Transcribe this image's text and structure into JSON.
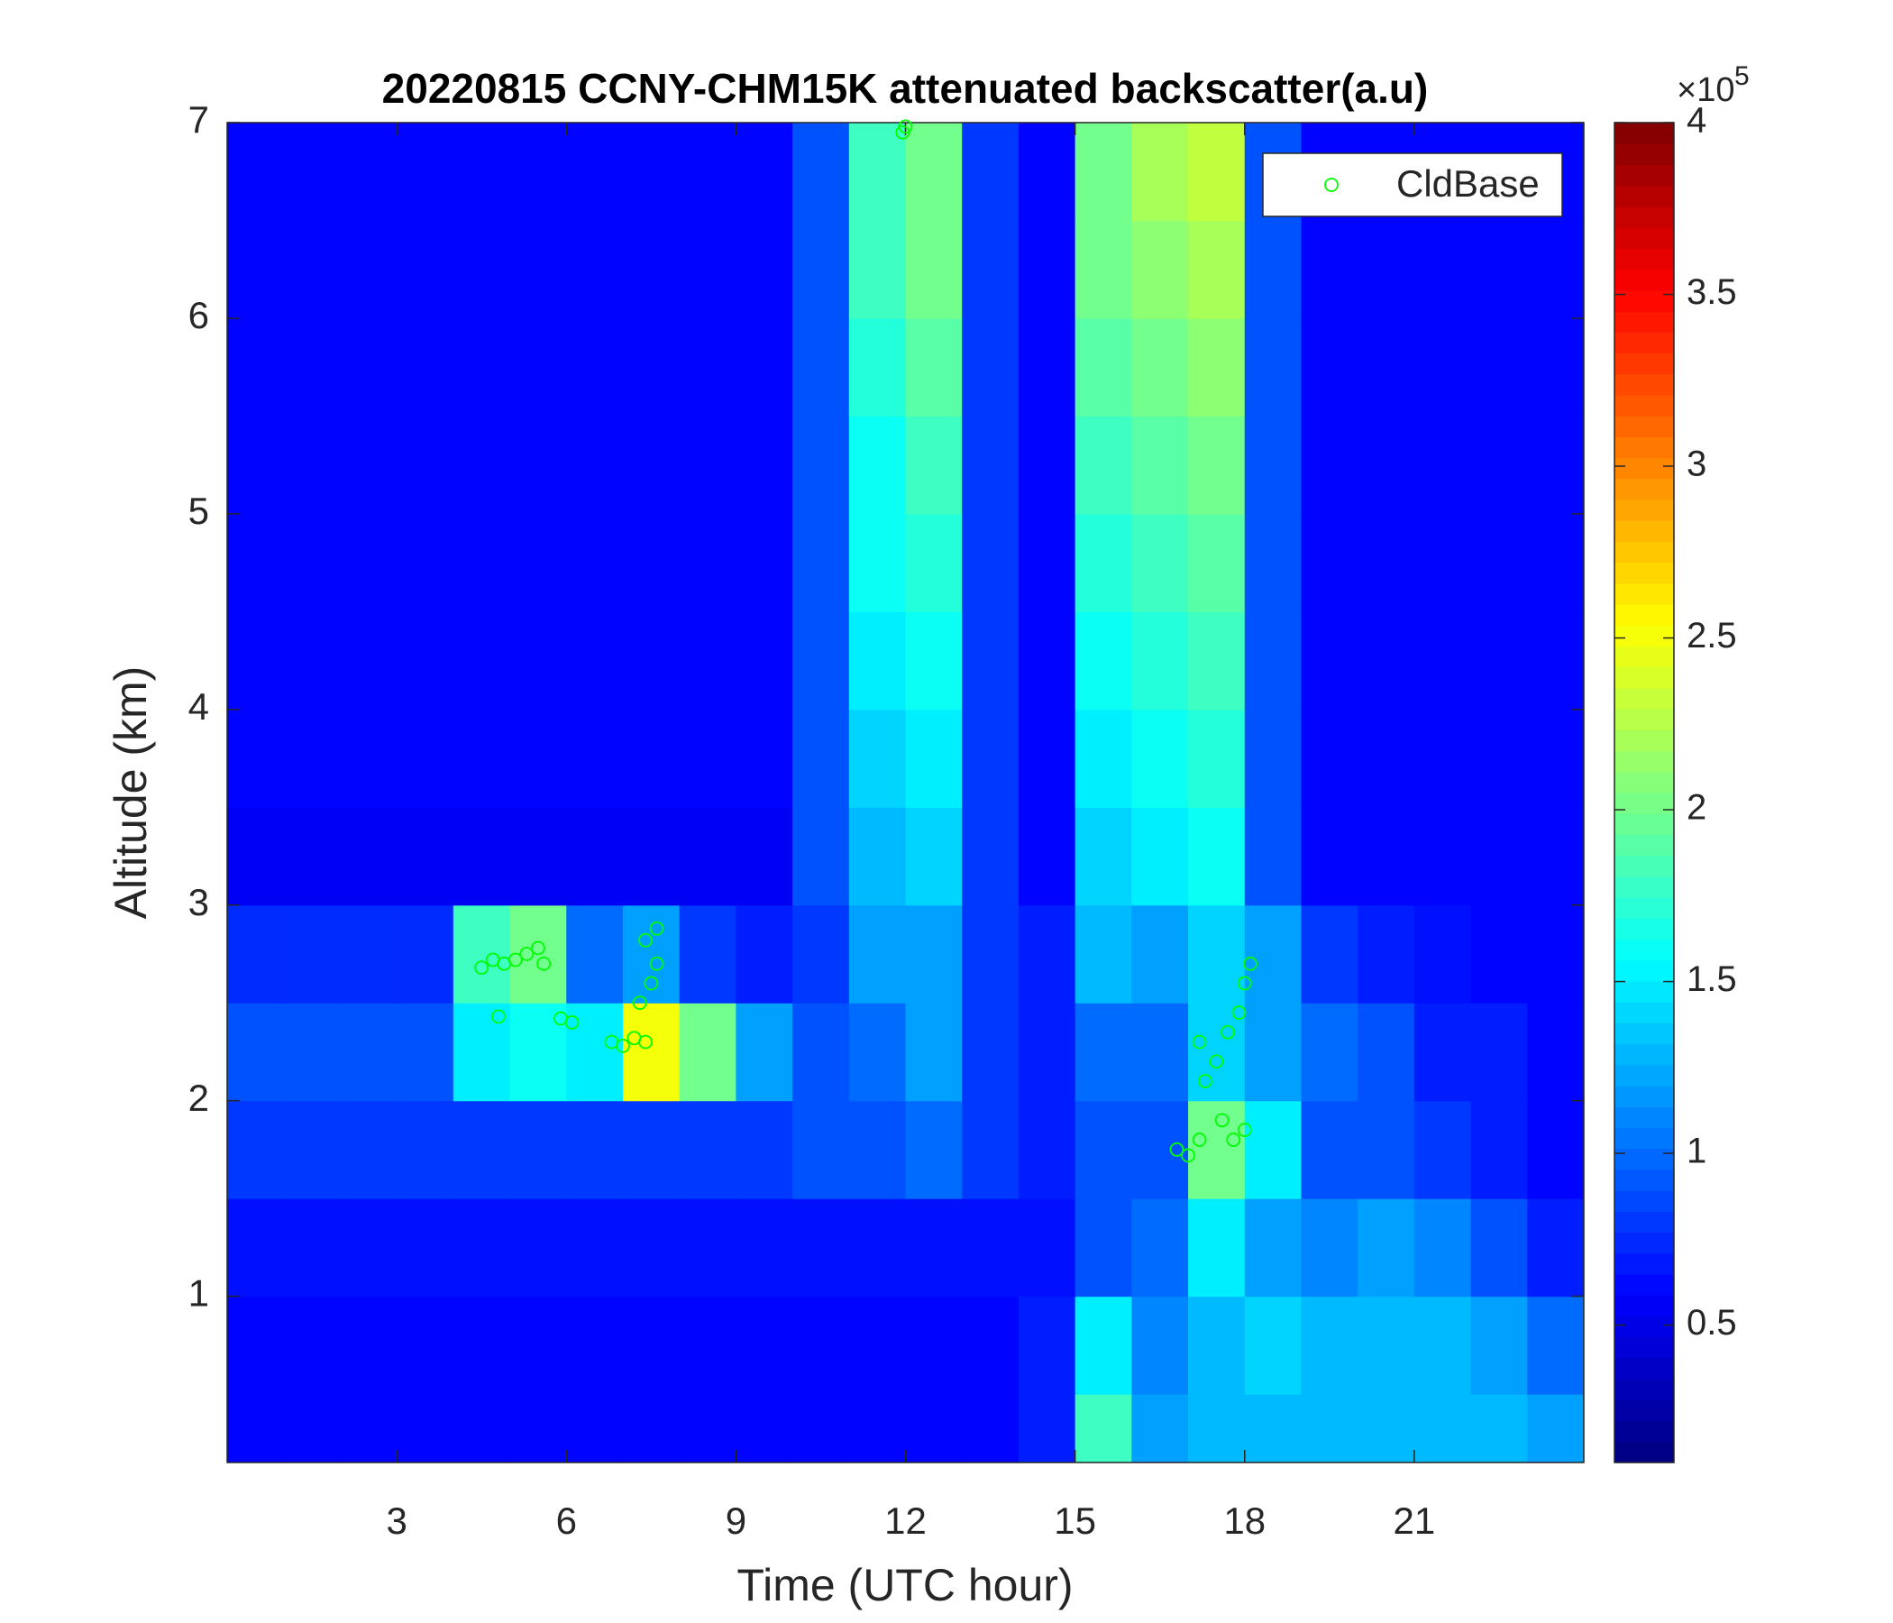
{
  "chart_data": {
    "type": "heatmap",
    "title": "20220815 CCNY-CHM15K attenuated backscatter(a.u)",
    "xlabel": "Time (UTC hour)",
    "ylabel": "Altitude (km)",
    "xlim": [
      0,
      24
    ],
    "ylim": [
      0.15,
      7
    ],
    "xticks": [
      3,
      6,
      9,
      12,
      15,
      18,
      21
    ],
    "yticks": [
      1,
      2,
      3,
      4,
      5,
      6,
      7
    ],
    "colormap": "jet",
    "clim": [
      0.1,
      4
    ],
    "cticks": [
      0.5,
      1,
      1.5,
      2,
      2.5,
      3,
      3.5,
      4
    ],
    "colorbar_multiplier": "×10",
    "colorbar_exponent": 5,
    "x": [
      0.5,
      1.5,
      2.5,
      3.5,
      4.5,
      5.5,
      6.5,
      7.5,
      8.5,
      9.5,
      10.5,
      11.5,
      12.5,
      13.5,
      14.5,
      15.5,
      16.5,
      17.5,
      18.5,
      19.5,
      20.5,
      21.5,
      22.5,
      23.5
    ],
    "y": [
      0.25,
      0.75,
      1.25,
      1.75,
      2.25,
      2.75,
      3.25,
      3.75,
      4.25,
      4.75,
      5.25,
      5.75,
      6.25,
      6.75
    ],
    "z": [
      [
        0.6,
        0.6,
        0.6,
        0.6,
        0.6,
        0.6,
        0.6,
        0.6,
        0.6,
        0.6,
        0.6,
        0.6,
        0.6,
        0.6,
        0.7,
        1.8,
        1.2,
        1.3,
        1.3,
        1.3,
        1.3,
        1.3,
        1.3,
        1.2
      ],
      [
        0.6,
        0.6,
        0.6,
        0.6,
        0.6,
        0.6,
        0.6,
        0.6,
        0.6,
        0.6,
        0.6,
        0.6,
        0.6,
        0.6,
        0.7,
        1.5,
        1.1,
        1.3,
        1.4,
        1.3,
        1.3,
        1.3,
        1.2,
        1.0
      ],
      [
        0.65,
        0.65,
        0.65,
        0.65,
        0.65,
        0.65,
        0.65,
        0.65,
        0.65,
        0.65,
        0.65,
        0.65,
        0.65,
        0.65,
        0.65,
        0.9,
        1.0,
        1.5,
        1.2,
        1.1,
        1.2,
        1.1,
        0.9,
        0.7
      ],
      [
        0.8,
        0.8,
        0.8,
        0.8,
        0.8,
        0.8,
        0.8,
        0.8,
        0.8,
        0.8,
        0.9,
        0.9,
        1.0,
        0.8,
        0.7,
        0.9,
        0.9,
        2.0,
        1.5,
        0.9,
        0.9,
        0.8,
        0.7,
        0.6
      ],
      [
        0.9,
        0.9,
        0.9,
        0.9,
        1.5,
        1.6,
        1.5,
        2.5,
        2.0,
        1.2,
        0.9,
        1.0,
        1.2,
        0.8,
        0.7,
        1.0,
        1.0,
        1.4,
        1.2,
        1.0,
        0.9,
        0.7,
        0.7,
        0.6
      ],
      [
        0.75,
        0.75,
        0.75,
        0.75,
        1.8,
        2.0,
        1.0,
        1.2,
        0.8,
        0.7,
        0.8,
        1.2,
        1.2,
        0.8,
        0.7,
        1.3,
        1.2,
        1.4,
        1.2,
        0.8,
        0.7,
        0.65,
        0.6,
        0.6
      ],
      [
        0.55,
        0.55,
        0.55,
        0.55,
        0.55,
        0.55,
        0.55,
        0.55,
        0.55,
        0.55,
        0.9,
        1.3,
        1.4,
        0.8,
        0.6,
        1.4,
        1.5,
        1.6,
        0.9,
        0.6,
        0.6,
        0.6,
        0.6,
        0.6
      ],
      [
        0.6,
        0.6,
        0.6,
        0.6,
        0.6,
        0.6,
        0.6,
        0.6,
        0.6,
        0.6,
        0.9,
        1.4,
        1.5,
        0.8,
        0.6,
        1.5,
        1.6,
        1.7,
        0.9,
        0.6,
        0.6,
        0.6,
        0.6,
        0.6
      ],
      [
        0.6,
        0.6,
        0.6,
        0.6,
        0.6,
        0.6,
        0.6,
        0.6,
        0.6,
        0.6,
        0.9,
        1.5,
        1.6,
        0.8,
        0.6,
        1.6,
        1.7,
        1.8,
        0.9,
        0.6,
        0.6,
        0.6,
        0.6,
        0.6
      ],
      [
        0.6,
        0.6,
        0.6,
        0.6,
        0.6,
        0.6,
        0.6,
        0.6,
        0.6,
        0.6,
        0.9,
        1.6,
        1.7,
        0.8,
        0.6,
        1.7,
        1.8,
        1.9,
        0.9,
        0.6,
        0.6,
        0.6,
        0.6,
        0.6
      ],
      [
        0.6,
        0.6,
        0.6,
        0.6,
        0.6,
        0.6,
        0.6,
        0.6,
        0.6,
        0.6,
        0.9,
        1.6,
        1.8,
        0.8,
        0.6,
        1.8,
        1.9,
        2.0,
        0.9,
        0.6,
        0.6,
        0.6,
        0.6,
        0.6
      ],
      [
        0.6,
        0.6,
        0.6,
        0.6,
        0.6,
        0.6,
        0.6,
        0.6,
        0.6,
        0.6,
        0.9,
        1.7,
        1.9,
        0.8,
        0.6,
        1.9,
        2.0,
        2.1,
        0.9,
        0.6,
        0.6,
        0.6,
        0.6,
        0.6
      ],
      [
        0.6,
        0.6,
        0.6,
        0.6,
        0.6,
        0.6,
        0.6,
        0.6,
        0.6,
        0.6,
        0.9,
        1.8,
        2.0,
        0.8,
        0.6,
        2.0,
        2.1,
        2.2,
        0.9,
        0.6,
        0.6,
        0.6,
        0.6,
        0.6
      ],
      [
        0.6,
        0.6,
        0.6,
        0.6,
        0.6,
        0.6,
        0.6,
        0.6,
        0.6,
        0.6,
        0.9,
        1.8,
        2.0,
        0.8,
        0.6,
        2.0,
        2.2,
        2.3,
        0.9,
        0.6,
        0.6,
        0.6,
        0.6,
        0.6
      ]
    ],
    "series": [
      {
        "name": "CldBase",
        "type": "scatter",
        "color": "#00ff00",
        "x": [
          4.5,
          4.7,
          4.9,
          5.1,
          5.3,
          5.5,
          5.6,
          4.8,
          5.9,
          6.1,
          6.8,
          7.0,
          7.2,
          7.3,
          7.4,
          7.5,
          7.6,
          7.6,
          7.4,
          12.0,
          11.95,
          16.8,
          17.0,
          17.2,
          17.3,
          17.5,
          17.6,
          17.8,
          17.9,
          18.0,
          18.1,
          17.2,
          18.0,
          17.7
        ],
        "y": [
          2.68,
          2.72,
          2.7,
          2.72,
          2.75,
          2.78,
          2.7,
          2.43,
          2.42,
          2.4,
          2.3,
          2.28,
          2.32,
          2.5,
          2.82,
          2.6,
          2.88,
          2.7,
          2.3,
          6.98,
          6.95,
          1.75,
          1.72,
          1.8,
          2.1,
          2.2,
          1.9,
          1.8,
          2.45,
          2.6,
          2.7,
          2.3,
          1.85,
          2.35
        ]
      }
    ],
    "legend": "northeast"
  }
}
